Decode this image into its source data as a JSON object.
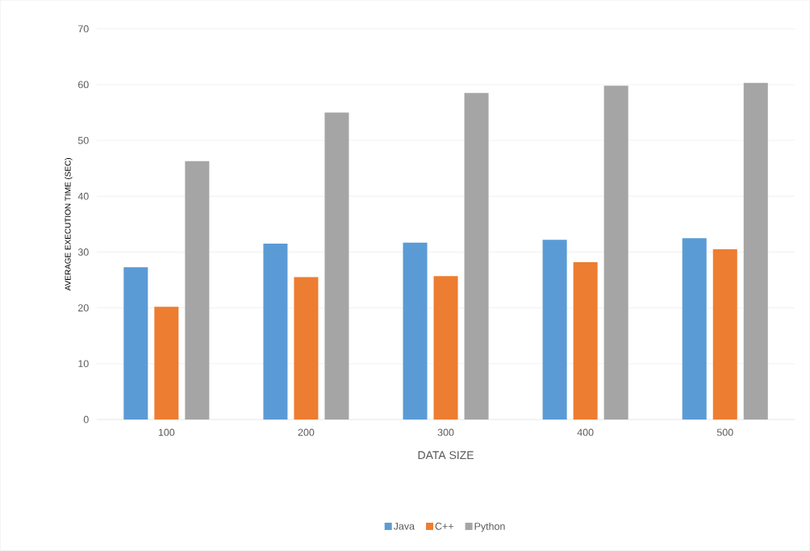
{
  "chart_data": {
    "type": "bar",
    "xlabel": "DATA SIZE",
    "ylabel": "AVERAGE EXECUTION TIME (SEC)",
    "categories": [
      "100",
      "200",
      "300",
      "400",
      "500"
    ],
    "series": [
      {
        "name": "Java",
        "color": "#5b9bd5",
        "values": [
          27.3,
          31.5,
          31.7,
          32.2,
          32.5
        ]
      },
      {
        "name": "C++",
        "color": "#ed7d31",
        "values": [
          20.2,
          25.5,
          25.7,
          28.2,
          30.5
        ]
      },
      {
        "name": "Python",
        "color": "#a5a5a5",
        "values": [
          46.3,
          55.0,
          58.5,
          59.8,
          60.3
        ]
      }
    ],
    "ylim": [
      0,
      70
    ],
    "yticks": [
      0,
      10,
      20,
      30,
      40,
      50,
      60,
      70
    ],
    "grid": "y",
    "legend": "bottom"
  }
}
